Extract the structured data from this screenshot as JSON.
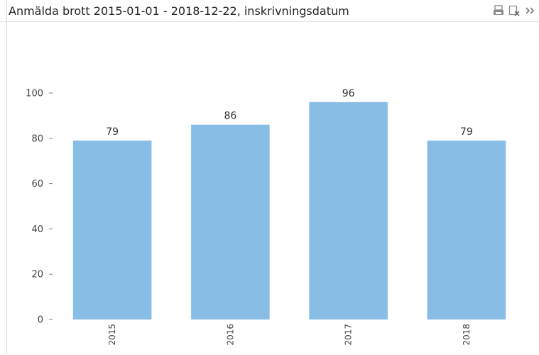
{
  "window": {
    "title": "Anmälda brott 2015-01-01 - 2018-12-22, inskrivningsdatum"
  },
  "toolbar": {
    "icons": [
      "print-icon",
      "clear-selection-icon",
      "more-icon"
    ]
  },
  "colors": {
    "bar": "#88bde6",
    "axis": "#7f7f7f"
  },
  "chart_data": {
    "type": "bar",
    "title": "",
    "xlabel": "",
    "ylabel": "",
    "categories": [
      "2015",
      "2016",
      "2017",
      "2018"
    ],
    "values": [
      79,
      86,
      96,
      79
    ],
    "ylim": [
      0,
      100
    ],
    "yticks": [
      0,
      20,
      40,
      60,
      80,
      100
    ],
    "data_labels": true,
    "grid": false,
    "legend": "none"
  }
}
